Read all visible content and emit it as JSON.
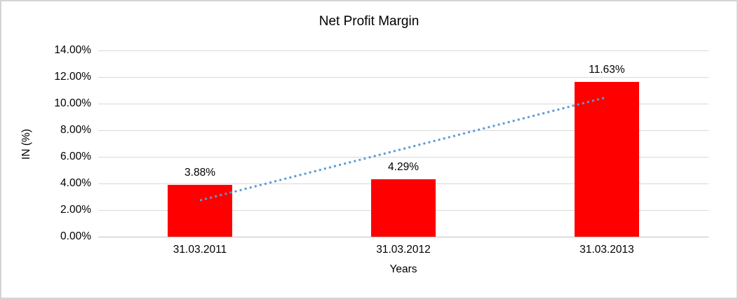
{
  "chart_data": {
    "type": "bar",
    "title": "Net Profit Margin",
    "xlabel": "Years",
    "ylabel": "IN (%)",
    "categories": [
      "31.03.2011",
      "31.03.2012",
      "31.03.2013"
    ],
    "values": [
      3.88,
      4.29,
      11.63
    ],
    "value_labels": [
      "3.88%",
      "4.29%",
      "11.63%"
    ],
    "ylim": [
      0,
      14
    ],
    "ytick_values": [
      0,
      2,
      4,
      6,
      8,
      10,
      12,
      14
    ],
    "ytick_labels": [
      "0.00%",
      "2.00%",
      "4.00%",
      "6.00%",
      "8.00%",
      "10.00%",
      "12.00%",
      "14.00%"
    ],
    "grid": true,
    "legend_position": "none",
    "bar_color": "#ff0000",
    "trendline": {
      "type": "linear",
      "style": "dotted",
      "color": "#5b9bd5",
      "start": {
        "x_frac": 0.1667,
        "value": 2.73
      },
      "end": {
        "x_frac": 0.8333,
        "value": 10.48
      }
    }
  },
  "colors": {
    "gridline": "#d9d9d9",
    "axis_line": "#bfbfbf",
    "frame_border": "#d4d4d4",
    "text": "#000000",
    "background": "#ffffff"
  }
}
